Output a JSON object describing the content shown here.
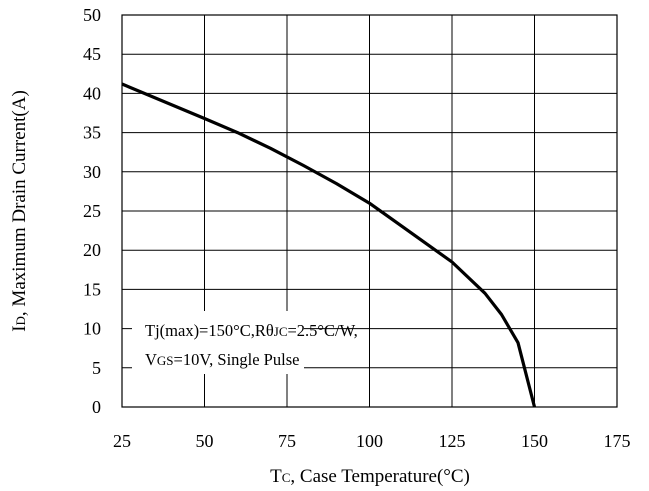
{
  "chart_data": {
    "type": "line",
    "xlabel": {
      "main": "T",
      "sub": "C",
      "rest": ", Case Temperature(°C)"
    },
    "ylabel": {
      "main": "I",
      "sub": "D",
      "rest": ", Maximum Drain Current(A)"
    },
    "xlim": [
      25,
      175
    ],
    "ylim": [
      0,
      50
    ],
    "xticks": [
      "25",
      "50",
      "75",
      "100",
      "125",
      "150",
      "175"
    ],
    "yticks": [
      "0",
      "5",
      "10",
      "15",
      "20",
      "25",
      "30",
      "35",
      "40",
      "45",
      "50"
    ],
    "grid": true,
    "series": [
      {
        "x": [
          25,
          50,
          60,
          70,
          80,
          90,
          100,
          110,
          125,
          135,
          140,
          145,
          150
        ],
        "y": [
          41.2,
          36.8,
          35.0,
          33.0,
          30.8,
          28.5,
          26.0,
          23.0,
          18.5,
          14.5,
          11.8,
          8.2,
          0
        ]
      }
    ],
    "annotation": {
      "line1": {
        "a": "Tj(max)=150°C,R",
        "theta": "θ",
        "sub": "JC",
        "b": "=2.5°C/W,"
      },
      "line2": {
        "a": "V",
        "sub": "GS",
        "b": "=10V, Single Pulse"
      }
    }
  }
}
